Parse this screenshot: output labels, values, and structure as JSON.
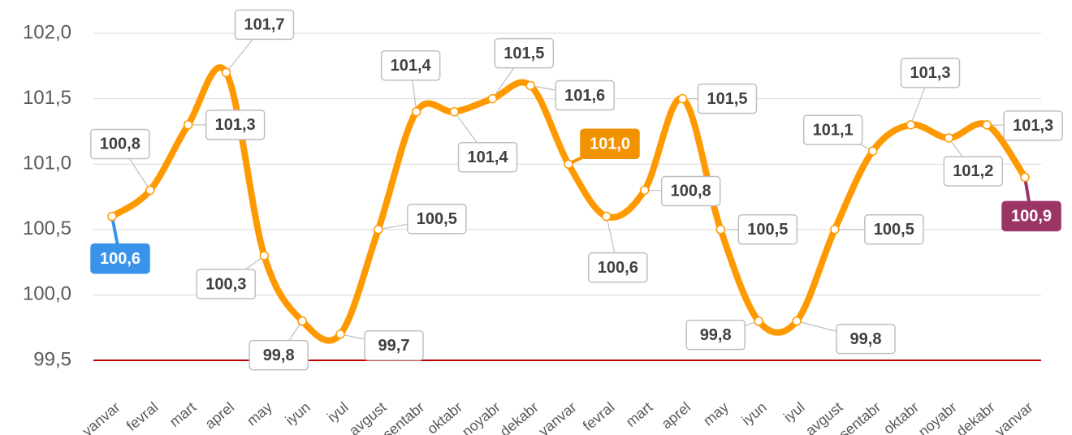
{
  "chart_data": {
    "type": "line",
    "categories": [
      "yanvar",
      "fevral",
      "mart",
      "aprel",
      "may",
      "iyun",
      "iyul",
      "avgust",
      "sentabr",
      "oktabr",
      "noyabr",
      "dekabr",
      "yanvar",
      "fevral",
      "mart",
      "aprel",
      "may",
      "iyun",
      "iyul",
      "avgust",
      "sentabr",
      "oktabr",
      "noyabr",
      "dekabr",
      "yanvar"
    ],
    "series": [
      {
        "color": "#ff9900",
        "values": [
          100.6,
          100.8,
          101.3,
          101.7,
          100.3,
          99.8,
          99.7,
          100.5,
          101.4,
          101.4,
          101.5,
          101.6,
          101.0,
          100.6,
          100.8,
          101.5,
          100.5,
          99.8,
          99.8,
          100.5,
          101.1,
          101.3,
          101.2,
          101.3,
          100.9
        ],
        "value_labels": [
          "100,6",
          "100,8",
          "101,3",
          "101,7",
          "100,3",
          "99,8",
          "99,7",
          "100,5",
          "101,4",
          "101,4",
          "101,5",
          "101,6",
          "101,0",
          "100,6",
          "100,8",
          "101,5",
          "100,5",
          "99,8",
          "99,8",
          "100,5",
          "101,1",
          "101,3",
          "101,2",
          "101,3",
          "100,9"
        ],
        "label_colors": [
          "#3a93ea",
          "#ffffff",
          "#ffffff",
          "#ffffff",
          "#ffffff",
          "#ffffff",
          "#ffffff",
          "#ffffff",
          "#ffffff",
          "#ffffff",
          "#ffffff",
          "#ffffff",
          "#f39200",
          "#ffffff",
          "#ffffff",
          "#ffffff",
          "#ffffff",
          "#ffffff",
          "#ffffff",
          "#ffffff",
          "#ffffff",
          "#ffffff",
          "#ffffff",
          "#ffffff",
          "#9b3566"
        ]
      }
    ],
    "ylim": [
      99.5,
      102.0
    ],
    "yticks": [
      {
        "value": 99.5,
        "label": "99,5"
      },
      {
        "value": 100.0,
        "label": "100,0"
      },
      {
        "value": 100.5,
        "label": "100,5"
      },
      {
        "value": 101.0,
        "label": "101,0"
      },
      {
        "value": 101.5,
        "label": "101,5"
      },
      {
        "value": 102.0,
        "label": "102,0"
      }
    ],
    "grid": true,
    "baseline_color": "#c00000"
  }
}
